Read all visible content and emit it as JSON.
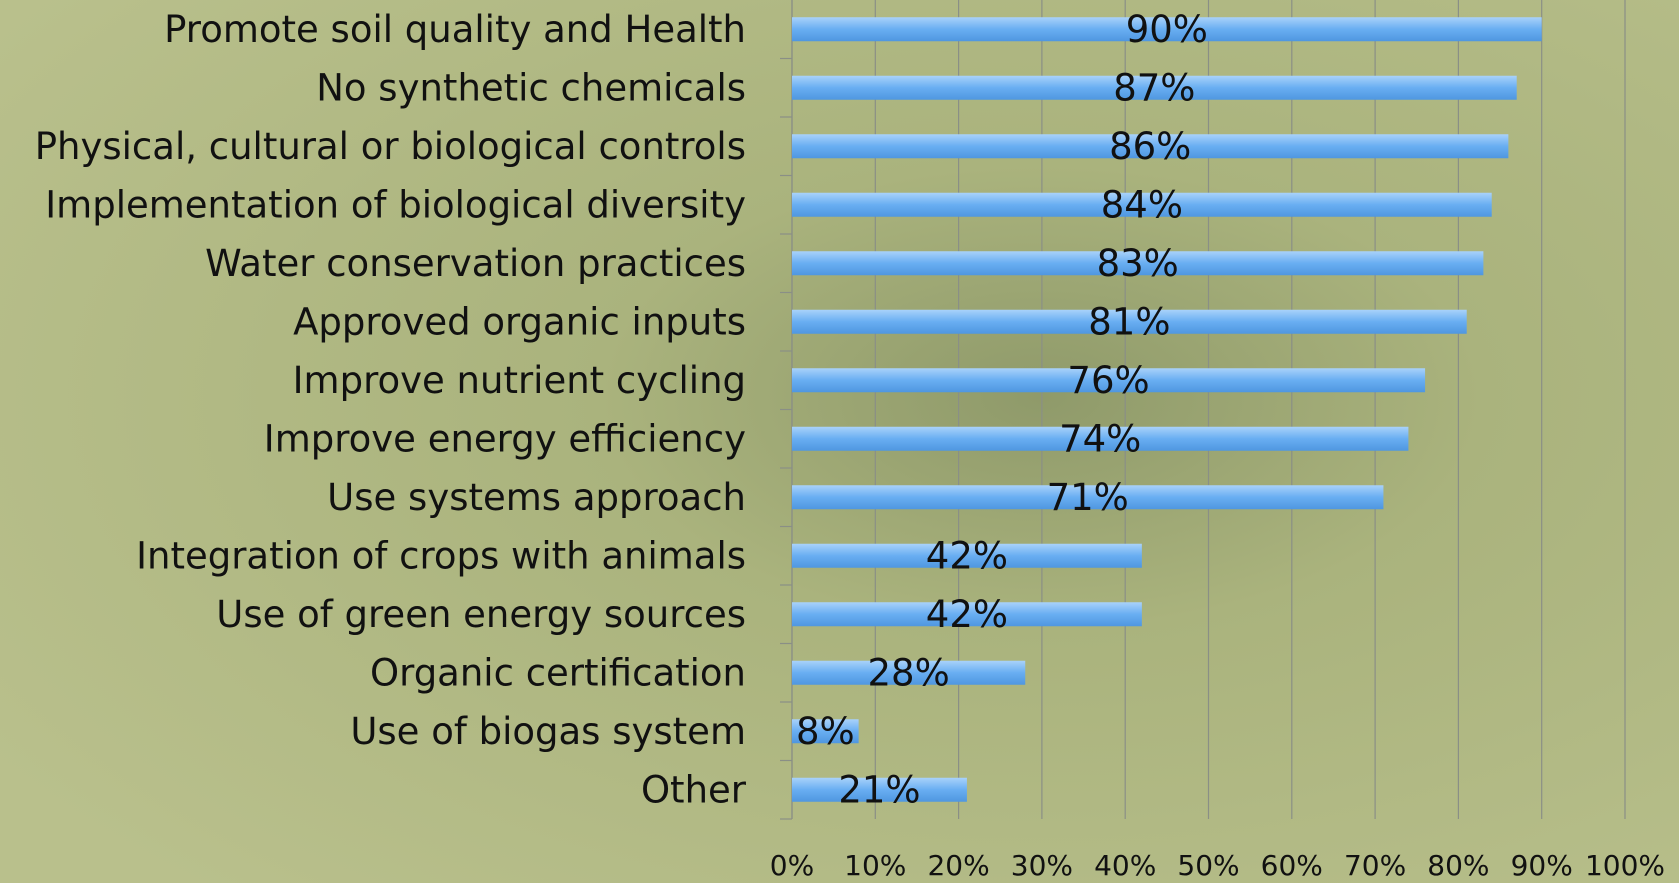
{
  "chart_data": {
    "type": "bar",
    "orientation": "horizontal",
    "categories": [
      "Promote soil quality and Health",
      "No synthetic chemicals",
      "Physical, cultural or biological controls",
      "Implementation of biological diversity",
      "Water conservation practices",
      "Approved organic inputs",
      "Improve nutrient cycling",
      "Improve energy efficiency",
      "Use systems approach",
      "Integration of crops with animals",
      "Use of green energy sources",
      "Organic certification",
      "Use of biogas system",
      "Other"
    ],
    "values": [
      90,
      87,
      86,
      84,
      83,
      81,
      76,
      74,
      71,
      42,
      42,
      28,
      8,
      21
    ],
    "value_labels": [
      "90%",
      "87%",
      "86%",
      "84%",
      "83%",
      "81%",
      "76%",
      "74%",
      "71%",
      "42%",
      "42%",
      "28%",
      "8%",
      "21%"
    ],
    "color": "#69aef2",
    "xlim": [
      0,
      100
    ],
    "xticks": [
      {
        "value": 0,
        "label": "0%"
      },
      {
        "value": 10,
        "label": "10%"
      },
      {
        "value": 20,
        "label": "20%"
      },
      {
        "value": 30,
        "label": "30%"
      },
      {
        "value": 40,
        "label": "40%"
      },
      {
        "value": 50,
        "label": "50%"
      },
      {
        "value": 60,
        "label": "60%"
      },
      {
        "value": 70,
        "label": "70%"
      },
      {
        "value": 80,
        "label": "80%"
      },
      {
        "value": 90,
        "label": "90%"
      },
      {
        "value": 100,
        "label": "100%"
      }
    ],
    "grid": true
  }
}
